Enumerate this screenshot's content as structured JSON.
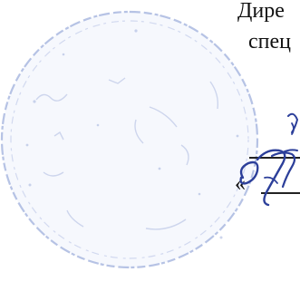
{
  "document": {
    "line_1": "Дире",
    "line_2": "спец",
    "quote_mark": "«"
  },
  "stamp": {
    "kind": "round-seal",
    "color": "#6b82c6"
  },
  "signature": {
    "color": "#2c3f9a"
  }
}
